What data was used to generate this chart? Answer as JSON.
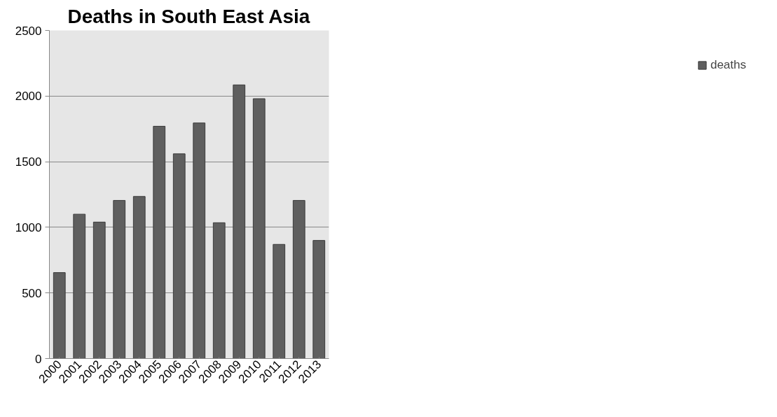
{
  "chart_data": {
    "type": "bar",
    "title": "Deaths in South East Asia",
    "categories": [
      "2000",
      "2001",
      "2002",
      "2003",
      "2004",
      "2005",
      "2006",
      "2007",
      "2008",
      "2009",
      "2010",
      "2011",
      "2012",
      "2013"
    ],
    "series": [
      {
        "name": "deaths",
        "color": "#5f5f5f",
        "values": [
          655,
          1100,
          1040,
          1205,
          1235,
          1770,
          1560,
          1795,
          1035,
          2085,
          1980,
          870,
          1205,
          900
        ]
      }
    ],
    "ylim": [
      0,
      2500
    ],
    "yticks": [
      0,
      500,
      1000,
      1500,
      2000,
      2500
    ],
    "grid": "y",
    "legend": "right"
  }
}
